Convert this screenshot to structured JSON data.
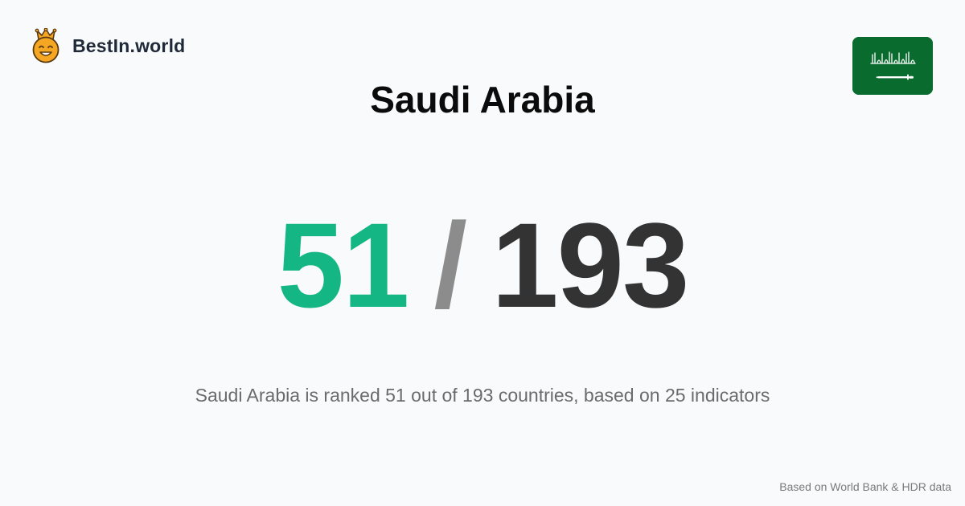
{
  "brand": {
    "site_name": "BestIn.world",
    "icon": "crown-smiley-icon"
  },
  "country": {
    "name": "Saudi Arabia",
    "flag_icon": "saudi-arabia-flag-icon"
  },
  "rank": {
    "value": "51",
    "separator": "/",
    "total": "193"
  },
  "summary": "Saudi Arabia is ranked 51 out of 193 countries, based on 25 indicators",
  "source": "Based on World Bank & HDR data",
  "colors": {
    "background": "#f8fafc",
    "rank_value": "#14b783",
    "separator": "#8c8c8c",
    "rank_total": "#333333",
    "flag_green": "#0a6b2f",
    "icon_orange": "#f5a623"
  }
}
